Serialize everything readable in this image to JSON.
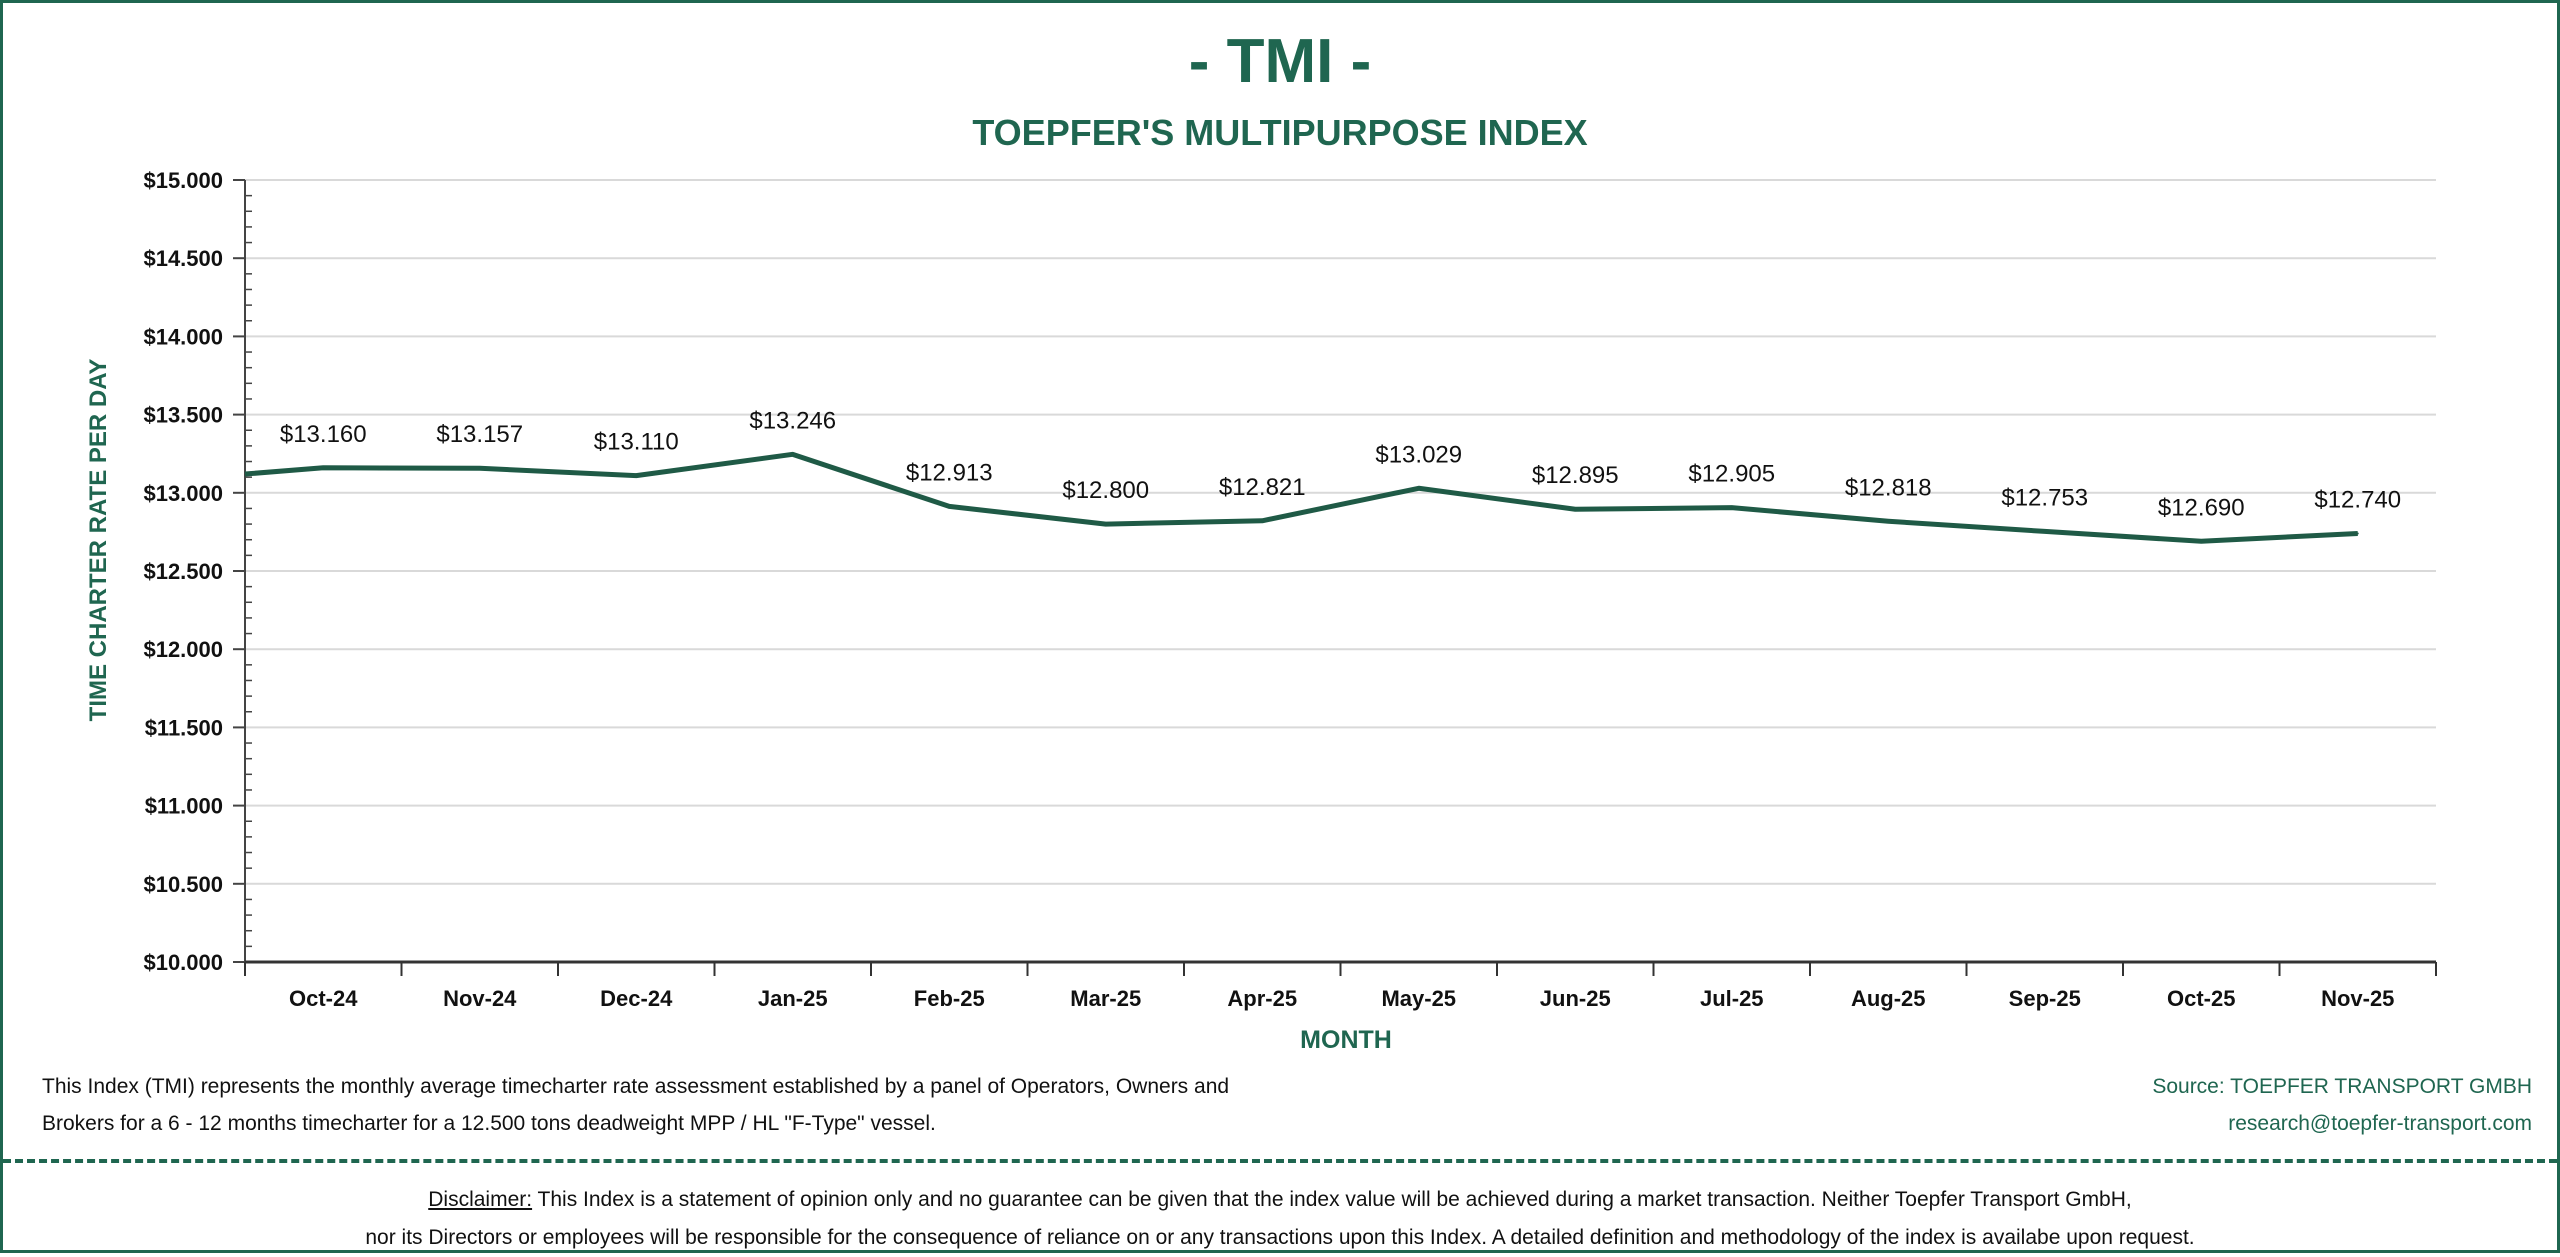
{
  "header": {
    "title": "- TMI -",
    "subtitle": "TOEPFER'S MULTIPURPOSE INDEX"
  },
  "colors": {
    "brand": "#1f6650",
    "line": "#1f5a46",
    "grid": "#d9d9d9"
  },
  "chart_data": {
    "type": "line",
    "title": "- TMI -",
    "subtitle": "TOEPFER'S MULTIPURPOSE INDEX",
    "xlabel": "MONTH",
    "ylabel": "TIME CHARTER RATE PER DAY",
    "ylim": [
      10000,
      15000
    ],
    "yticks": [
      10000,
      10500,
      11000,
      11500,
      12000,
      12500,
      13000,
      13500,
      14000,
      14500,
      15000
    ],
    "ytick_labels": [
      "$10.000",
      "$10.500",
      "$11.000",
      "$11.500",
      "$12.000",
      "$12.500",
      "$13.000",
      "$13.500",
      "$14.000",
      "$14.500",
      "$15.000"
    ],
    "grid": true,
    "leading_value": 13120,
    "categories": [
      "Oct-24",
      "Nov-24",
      "Dec-24",
      "Jan-25",
      "Feb-25",
      "Mar-25",
      "Apr-25",
      "May-25",
      "Jun-25",
      "Jul-25",
      "Aug-25",
      "Sep-25",
      "Oct-25",
      "Nov-25"
    ],
    "series": [
      {
        "name": "TMI",
        "values": [
          13160,
          13157,
          13110,
          13246,
          12913,
          12800,
          12821,
          13029,
          12895,
          12905,
          12818,
          12753,
          12690,
          12740
        ],
        "labels": [
          "$13.160",
          "$13.157",
          "$13.110",
          "$13.246",
          "$12.913",
          "$12.800",
          "$12.821",
          "$13.029",
          "$12.895",
          "$12.905",
          "$12.818",
          "$12.753",
          "$12.690",
          "$12.740"
        ]
      }
    ]
  },
  "footer": {
    "description_line1": "This Index (TMI) represents the monthly average timecharter rate assessment established by a panel of Operators, Owners and",
    "description_line2": "Brokers for a 6 - 12 months timecharter for a 12.500 tons deadweight MPP / HL \"F-Type\" vessel.",
    "source": "Source: TOEPFER TRANSPORT GMBH",
    "email": "research@toepfer-transport.com",
    "disclaimer_label": "Disclaimer:",
    "disclaimer_line1": " This Index is a statement of opinion only and no guarantee can be given that the index value will be achieved during a market transaction. Neither Toepfer Transport GmbH,",
    "disclaimer_line2": "nor its Directors or employees will be responsible for the consequence of reliance on or any transactions upon this Index.  A detailed definition and methodology of the index is availabe upon request."
  }
}
